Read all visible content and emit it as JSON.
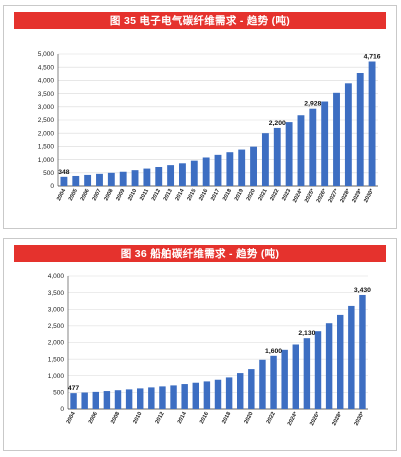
{
  "colors": {
    "title_bar": "#e5322d",
    "bar": "#3d6ec2",
    "grid": "#d9d9d9",
    "axis": "#333333"
  },
  "chart_data": [
    {
      "type": "bar",
      "title": "图 35  电子电气碳纤维需求 - 趋势 (吨)",
      "xlabel": "",
      "ylabel": "",
      "ylim": [
        0,
        5000
      ],
      "yticks": [
        "0",
        "500",
        "1,000",
        "1,500",
        "2,000",
        "2,500",
        "3,000",
        "3,500",
        "4,000",
        "4,500",
        "5,000"
      ],
      "grid": true,
      "categories": [
        "2004",
        "2005",
        "2006",
        "2007",
        "2008",
        "2009",
        "2010",
        "2011",
        "2012",
        "2013",
        "2014",
        "2015",
        "2016",
        "2017",
        "2018",
        "2019",
        "2020",
        "2021",
        "2022",
        "2023",
        "2024*",
        "2025*",
        "2026*",
        "2027*",
        "2028*",
        "2029*",
        "2030*"
      ],
      "tick_labels": [
        "2004",
        "2005",
        "2006",
        "2007",
        "2008",
        "2009",
        "2010",
        "2011",
        "2012",
        "2013",
        "2014",
        "2015",
        "2016",
        "2017",
        "2018",
        "2019",
        "2020",
        "2021",
        "2022",
        "2023",
        "2024*",
        "2025*",
        "2026*",
        "2027*",
        "2028*",
        "2029*",
        "2030*"
      ],
      "values": [
        348,
        380,
        420,
        460,
        500,
        540,
        600,
        660,
        720,
        790,
        860,
        960,
        1080,
        1180,
        1280,
        1380,
        1490,
        2000,
        2200,
        2420,
        2680,
        2928,
        3200,
        3530,
        3890,
        4280,
        4716
      ],
      "data_labels": [
        {
          "index": 0,
          "text": "348"
        },
        {
          "index": 18,
          "text": "2,200"
        },
        {
          "index": 21,
          "text": "2,928"
        },
        {
          "index": 26,
          "text": "4,716"
        }
      ]
    },
    {
      "type": "bar",
      "title": "图 36  船舶碳纤维需求 - 趋势 (吨)",
      "xlabel": "",
      "ylabel": "",
      "ylim": [
        0,
        4000
      ],
      "yticks": [
        "0",
        "500",
        "1,000",
        "1,500",
        "2,000",
        "2,500",
        "3,000",
        "3,500",
        "4,000"
      ],
      "grid": true,
      "categories": [
        "2004",
        "2005",
        "2006",
        "2007",
        "2008",
        "2009",
        "2010",
        "2011",
        "2012",
        "2013",
        "2014",
        "2015",
        "2016",
        "2017",
        "2018",
        "2019",
        "2020",
        "2021",
        "2022",
        "2023",
        "2024*",
        "2025*",
        "2026*",
        "2027*",
        "2028*",
        "2029*",
        "2030*"
      ],
      "tick_labels": [
        "2004",
        "",
        "2006",
        "",
        "2008",
        "",
        "2010",
        "",
        "2012",
        "",
        "2014",
        "",
        "2016",
        "",
        "2018",
        "",
        "2020",
        "",
        "2022",
        "",
        "2024*",
        "",
        "2026*",
        "",
        "2028*",
        "",
        "2030*"
      ],
      "values": [
        477,
        495,
        515,
        540,
        565,
        590,
        620,
        650,
        680,
        710,
        750,
        790,
        830,
        880,
        950,
        1080,
        1200,
        1480,
        1600,
        1780,
        1940,
        2130,
        2340,
        2580,
        2830,
        3100,
        3430
      ],
      "data_labels": [
        {
          "index": 0,
          "text": "477"
        },
        {
          "index": 18,
          "text": "1,600"
        },
        {
          "index": 21,
          "text": "2,130"
        },
        {
          "index": 26,
          "text": "3,430"
        }
      ]
    }
  ]
}
